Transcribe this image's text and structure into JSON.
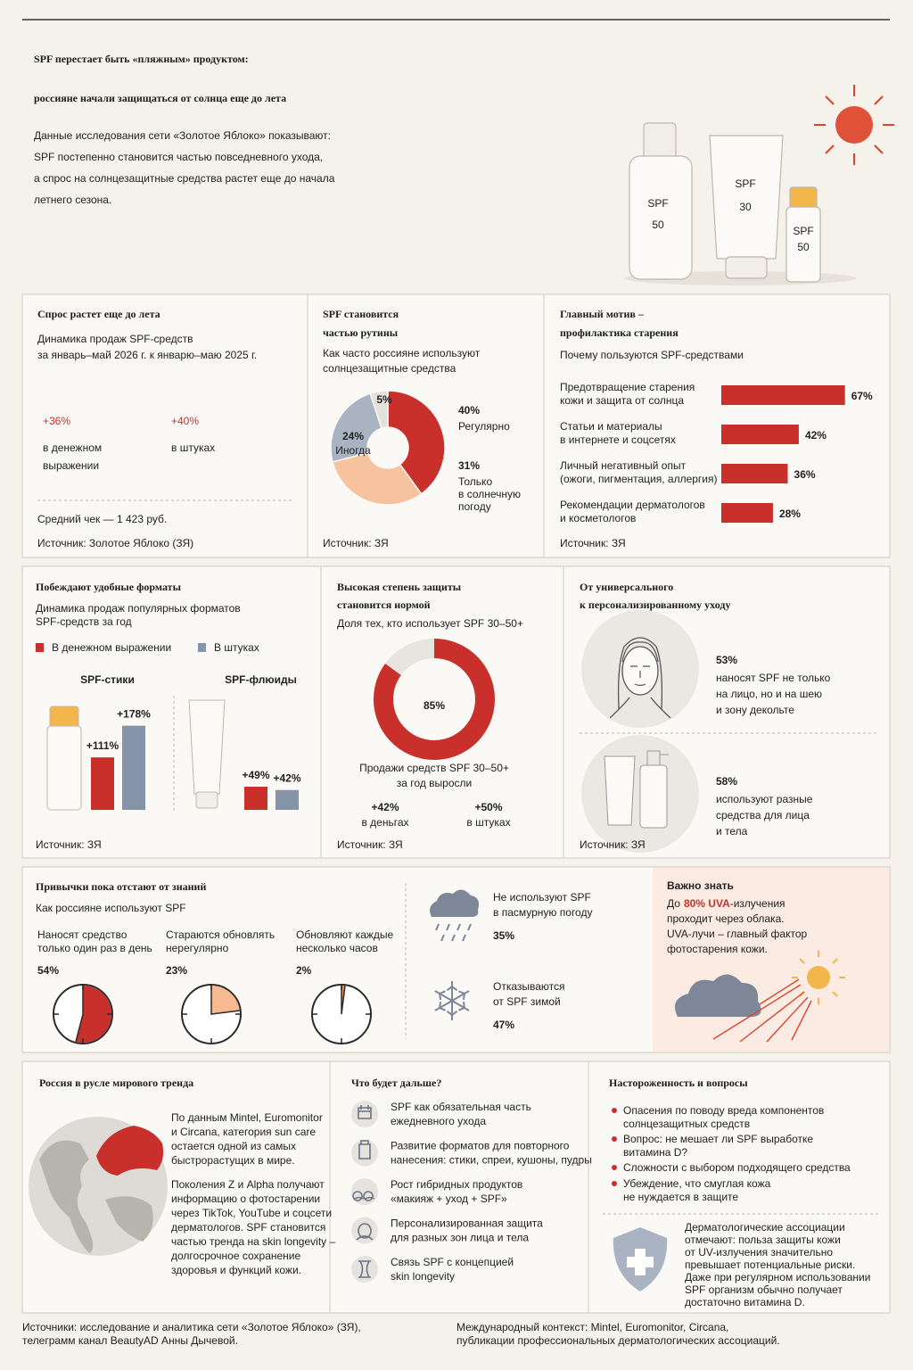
{
  "header": {
    "title": [
      "SPF перестает быть «пляжным» продуктом:",
      "россияне начали защищаться от солнца еще до лета"
    ],
    "intro": [
      "Данные исследования сети «Золотое Яблоко» показывают:",
      "SPF постепенно становится частью повседневного ухода,",
      "а спрос на солнцезащитные средства растет еще до начала",
      "летнего сезона."
    ],
    "products": [
      {
        "label": "SPF",
        "value": "50"
      },
      {
        "label": "SPF",
        "value": "30"
      },
      {
        "label": "SPF",
        "value": "50"
      }
    ]
  },
  "demand": {
    "title": "Спрос растет еще до лета",
    "subtitle": [
      "Динамика продаж SPF-средств",
      "за январь–май 2026 г. к январю–маю 2025 г."
    ],
    "stats": [
      {
        "value": "+36%",
        "label": [
          "в денежном",
          "выражении"
        ]
      },
      {
        "value": "+40%",
        "label": [
          "в штуках"
        ]
      }
    ],
    "average_check": "Средний чек — 1 423 руб.",
    "source": "Источник: Золотое Яблоко (ЗЯ)"
  },
  "routine": {
    "title": [
      "SPF становится",
      "частью рутины"
    ],
    "subtitle": [
      "Как часто россияне используют",
      "солнцезащитные средства"
    ],
    "segments": [
      {
        "value": 40,
        "value_label": "40%",
        "label": [
          "Регулярно"
        ],
        "color": "#c9302c"
      },
      {
        "value": 31,
        "value_label": "31%",
        "label": [
          "Только",
          "в солнечную",
          "погоду"
        ],
        "color": "#f7c39e"
      },
      {
        "value": 24,
        "value_label": "24%",
        "label": [
          "Иногда"
        ],
        "color": "#a9b3c1"
      },
      {
        "value": 5,
        "value_label": "5%",
        "color": "#e4e1dc"
      }
    ],
    "source": "Источник: ЗЯ"
  },
  "motive": {
    "title": [
      "Главный мотив –",
      "профилактика старения"
    ],
    "subtitle": "Почему пользуются SPF-средствами",
    "color": "#c9302c",
    "bars": [
      {
        "label": [
          "Предотвращение старения",
          "кожи и защита от солнца"
        ],
        "value": 67,
        "value_label": "67%"
      },
      {
        "label": [
          "Статьи и материалы",
          "в интернете и соцсетях"
        ],
        "value": 42,
        "value_label": "42%"
      },
      {
        "label": [
          "Личный негативный опыт",
          "(ожоги, пигментация, аллергия)"
        ],
        "value": 36,
        "value_label": "36%"
      },
      {
        "label": [
          "Рекомендации дерматологов",
          "и косметологов"
        ],
        "value": 28,
        "value_label": "28%"
      }
    ],
    "source": "Источник: ЗЯ"
  },
  "formats": {
    "title": "Побеждают удобные форматы",
    "subtitle": [
      "Динамика продаж популярных форматов",
      "SPF-средств за год"
    ],
    "series": [
      {
        "name": "В денежном выражении",
        "color": "#c9302c"
      },
      {
        "name": "В штуках",
        "color": "#8594a8"
      }
    ],
    "groups": [
      {
        "name": "SPF-стики",
        "values": [
          111,
          178
        ],
        "value_labels": [
          "+111%",
          "+178%"
        ]
      },
      {
        "name": "SPF-флюиды",
        "values": [
          49,
          42
        ],
        "value_labels": [
          "+49%",
          "+42%"
        ]
      }
    ],
    "source": "Источник: ЗЯ"
  },
  "protection": {
    "title": [
      "Высокая степень защиты",
      "становится нормой"
    ],
    "subtitle": "Доля тех, кто использует SPF 30–50+",
    "value": 85,
    "value_label": "85%",
    "color": "#c9302c",
    "note": [
      "Продажи средств SPF 30–50+",
      "за год выросли"
    ],
    "stats": [
      {
        "value": "+42%",
        "label": "в деньгах"
      },
      {
        "value": "+50%",
        "label": "в штуках"
      }
    ],
    "source": "Источник: ЗЯ"
  },
  "personal": {
    "title": [
      "От универсального",
      "к персонализированному уходу"
    ],
    "items": [
      {
        "value": "53%",
        "text": [
          "наносят SPF не только",
          "на лицо, но и на шею",
          "и зону декольте"
        ]
      },
      {
        "value": "58%",
        "text": [
          "используют разные",
          "средства для лица",
          "и тела"
        ]
      }
    ],
    "source": "Источник: ЗЯ"
  },
  "habits": {
    "title": "Привычки пока отстают от знаний",
    "subtitle": "Как россияне используют SPF",
    "clocks": [
      {
        "label": [
          "Наносят средство",
          "только один раз в день"
        ],
        "value": 54,
        "value_label": "54%",
        "color": "#c9302c"
      },
      {
        "label": [
          "Стараются обновлять",
          "нерегулярно"
        ],
        "value": 23,
        "value_label": "23%",
        "color": "#f7b98f"
      },
      {
        "label": [
          "Обновляют каждые",
          "несколько часов"
        ],
        "value": 2,
        "value_label": "2%",
        "color": "#e58a5a"
      }
    ]
  },
  "weather": {
    "items": [
      {
        "text": [
          "Не используют SPF",
          "в пасмурную погоду"
        ],
        "value": "35%"
      },
      {
        "text": [
          "Отказываются",
          "от SPF зимой"
        ],
        "value": "47%"
      }
    ]
  },
  "important": {
    "title": "Важно знать",
    "prefix": "До",
    "highlight": "80% UVA",
    "suffix": "-излучения",
    "lines": [
      "проходит через облака.",
      "UVA-лучи – главный фактор",
      "фотостарения кожи."
    ]
  },
  "world": {
    "title": "Россия в русле мирового тренда",
    "paragraphs": [
      [
        "По данным Mintel, Euromonitor",
        "и Circana, категория sun care",
        "остается одной из самых",
        "быстрорастущих в мире."
      ],
      [
        "Поколения Z и Alpha получают",
        "информацию о фотостарении",
        "через TikTok, YouTube и соцсети",
        "дерматологов. SPF становится",
        "частью тренда на skin longevity –",
        "долгосрочное сохранение",
        "здоровья и функций кожи."
      ]
    ]
  },
  "next": {
    "title": "Что будет дальше?",
    "items": [
      [
        "SPF как обязательная часть",
        "ежедневного ухода"
      ],
      [
        "Развитие форматов для повторного",
        "нанесения: стики, спреи, кушоны, пудры"
      ],
      [
        "Рост гибридных продуктов",
        "«макияж + уход + SPF»"
      ],
      [
        "Персонализированная защита",
        "для разных зон лица и тела"
      ],
      [
        "Связь SPF с концепцией",
        "skin longevity"
      ]
    ]
  },
  "concerns": {
    "title": "Настороженность и вопросы",
    "items": [
      [
        "Опасения по поводу вреда компонентов",
        "солнцезащитных средств"
      ],
      [
        "Вопрос: не мешает ли SPF выработке",
        "витамина D?"
      ],
      [
        "Сложности с выбором подходящего средства"
      ],
      [
        "Убеждение, что смуглая кожа",
        "не нуждается в защите"
      ]
    ],
    "note": [
      "Дерматологические ассоциации",
      "отмечают: польза защиты кожи",
      "от UV-излучения значительно",
      "превышает потенциальные риски.",
      "Даже при регулярном использовании",
      "SPF организм обычно получает",
      "достаточно витамина D."
    ]
  },
  "footer": {
    "left": [
      "Источники: исследование и аналитика сети «Золотое Яблоко» (ЗЯ),",
      "телеграмм канал BeautyAD Анны Дычевой."
    ],
    "right": [
      "Международный контекст: Mintel, Euromonitor, Circana,",
      "публикации профессиональных дерматологических ассоциаций."
    ]
  }
}
